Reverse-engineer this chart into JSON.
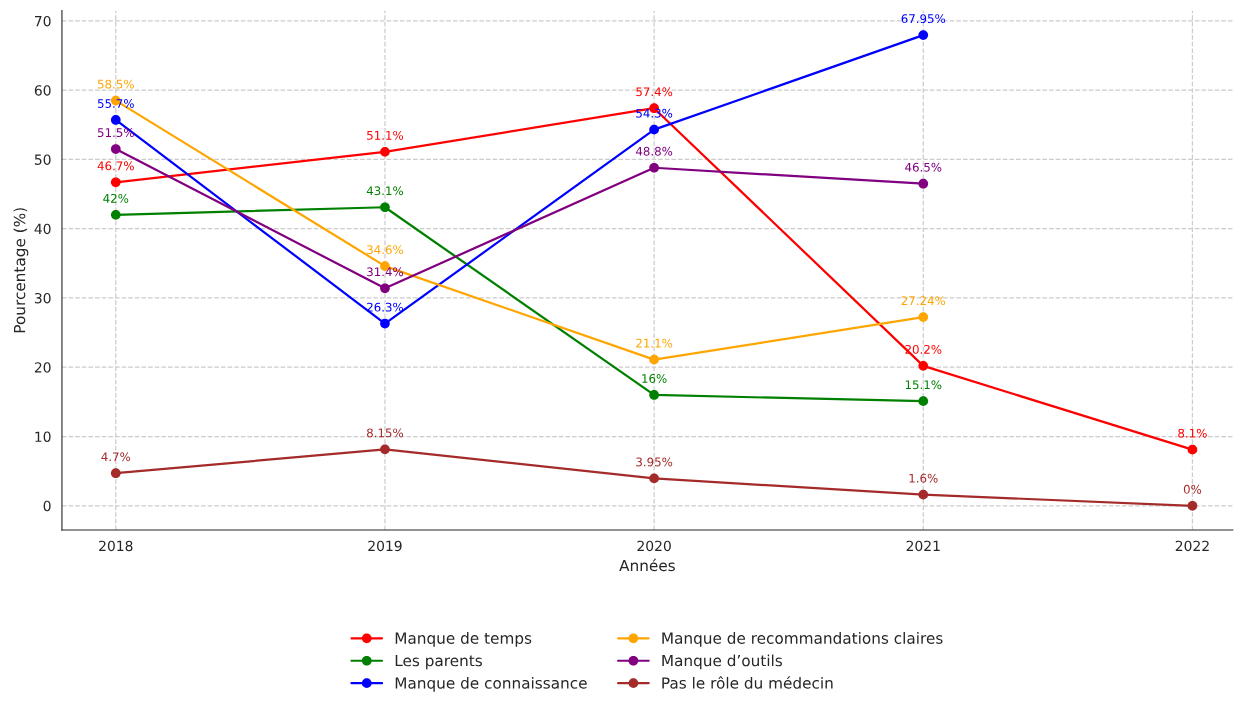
{
  "chart_data": {
    "type": "line",
    "xlabel": "Années",
    "ylabel": "Pourcentage (%)",
    "x": [
      2018,
      2019,
      2020,
      2021,
      2022
    ],
    "xlim": [
      2017.8,
      2022.15
    ],
    "xticks": [
      2018,
      2019,
      2020,
      2021,
      2022
    ],
    "ylim": [
      -3.5,
      71.5
    ],
    "yticks": [
      0,
      10,
      20,
      30,
      40,
      50,
      60,
      70
    ],
    "grid": true,
    "legend": "bottom",
    "marker": "circle",
    "line_style": "solid",
    "series": [
      {
        "name": "Manque de temps",
        "color": "#ff0000",
        "values": [
          46.7,
          51.1,
          57.4,
          20.2,
          8.1
        ],
        "value_labels": [
          "46.7%",
          "51.1%",
          "57.4%",
          "20.2%",
          "8.1%"
        ]
      },
      {
        "name": "Les parents",
        "color": "#008000",
        "values": [
          42,
          43.1,
          16,
          15.1,
          null
        ],
        "value_labels": [
          "42%",
          "43.1%",
          "16%",
          "15.1%",
          null
        ]
      },
      {
        "name": "Manque de connaissance",
        "color": "#0000ff",
        "values": [
          55.7,
          26.3,
          54.3,
          67.95,
          null
        ],
        "value_labels": [
          "55.7%",
          "26.3%",
          "54.3%",
          "67.95%",
          null
        ]
      },
      {
        "name": "Manque de recommandations claires",
        "color": "#ffa500",
        "values": [
          58.5,
          34.6,
          21.1,
          27.24,
          null
        ],
        "value_labels": [
          "58.5%",
          "34.6%",
          "21.1%",
          "27.24%",
          null
        ]
      },
      {
        "name": "Manque d’outils",
        "color": "#800080",
        "values": [
          51.5,
          31.4,
          48.8,
          46.5,
          null
        ],
        "value_labels": [
          "51.5%",
          "31.4%",
          "48.8%",
          "46.5%",
          null
        ]
      },
      {
        "name": "Pas le rôle du médecin",
        "color": "#a52a2a",
        "values": [
          4.7,
          8.15,
          3.95,
          1.6,
          0
        ],
        "value_labels": [
          "4.7%",
          "8.15%",
          "3.95%",
          "1.6%",
          "0%"
        ]
      }
    ]
  }
}
